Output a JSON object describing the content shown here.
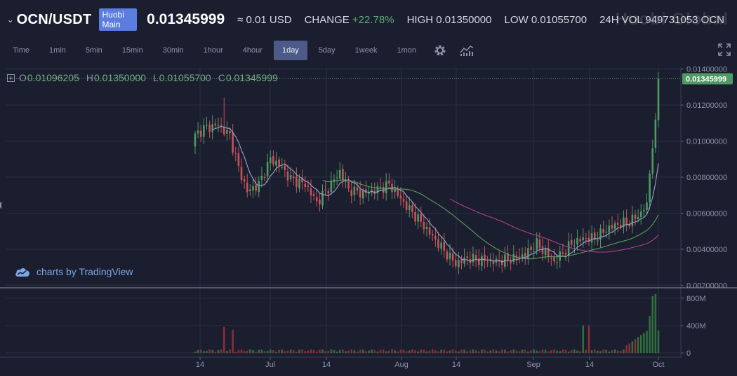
{
  "header": {
    "pair": "OCN/USDT",
    "badge": "Huobi Main",
    "price": "0.01345999",
    "usd": "≈ 0.01 USD",
    "change_label": "CHANGE",
    "change_value": "+22.78%",
    "high_label": "HIGH",
    "high_value": "0.01350000",
    "low_label": "LOW",
    "low_value": "0.01055700",
    "vol_label": "24H VOL",
    "vol_value": "949731053 OCN",
    "watermark": "Huobi Global"
  },
  "toolbar": {
    "timeframes": [
      "Time",
      "1min",
      "5min",
      "15min",
      "30min",
      "1hour",
      "4hour",
      "1day",
      "5day",
      "1week",
      "1mon"
    ],
    "active": "1day",
    "settings_icon": "gear-icon",
    "indicators_icon": "chart-indicator-icon",
    "fullscreen_icon": "fullscreen-icon"
  },
  "ohlc": {
    "o_label": "O",
    "o": "0.01096205",
    "h_label": "H",
    "h": "0.01350000",
    "l_label": "L",
    "l": "0.01055700",
    "c_label": "C",
    "c": "0.01345999"
  },
  "branding": {
    "text": "charts by TradingView",
    "icon": "tradingview-cloud-icon"
  },
  "colors": {
    "up": "#4e9a62",
    "down": "#c8525c",
    "bg": "#1b1e2e",
    "grid": "#2a2e40",
    "ma_fast": "#9aa2d0",
    "ma_mid": "#5a9c5f",
    "ma_slow": "#b23f8f",
    "last_price_bg": "#4e9a62"
  },
  "chart_data": {
    "type": "candlestick",
    "price_axis": {
      "ticks": [
        "0.01400000",
        "0.01200000",
        "0.01000000",
        "0.00800000",
        "0.00600000",
        "0.00400000",
        "0.00200000"
      ],
      "range": [
        0.0019,
        0.0141
      ]
    },
    "volume_axis": {
      "ticks": [
        "800M",
        "400M",
        "0"
      ],
      "range": [
        0,
        880
      ]
    },
    "x_ticks": [
      "14",
      "Jul",
      "14",
      "Aug",
      "14",
      "Sep",
      "14",
      "Oct"
    ],
    "last_price": "0.01345999",
    "key_points": [
      {
        "date": "Jun 14",
        "close": 0.0103
      },
      {
        "date": "Jun 20",
        "high": 0.0123
      },
      {
        "date": "Jun 26",
        "close": 0.0072
      },
      {
        "date": "Jul 2",
        "close": 0.0095
      },
      {
        "date": "Jul 24",
        "close": 0.0071
      },
      {
        "date": "Aug 14",
        "low": 0.0027
      },
      {
        "date": "Sep 12",
        "close": 0.0034
      },
      {
        "date": "Oct 1",
        "close": 0.01345999
      }
    ],
    "moving_averages": [
      "fast",
      "mid",
      "slow"
    ],
    "grid": true
  }
}
